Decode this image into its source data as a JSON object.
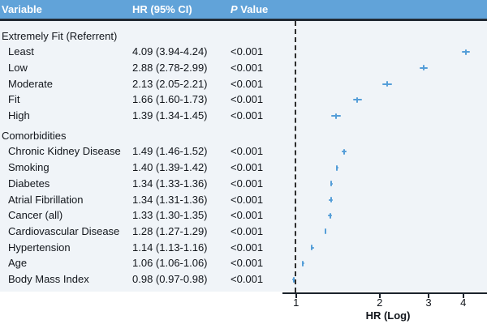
{
  "figure": {
    "header": {
      "col_variable": "Variable",
      "col_hr": "HR (95% CI)",
      "col_p_italic": "P",
      "col_p_rest": " Value"
    }
  },
  "colors": {
    "header_bg": "#61a3d9",
    "divider": "#222a33",
    "table_bg": "#f0f4f8",
    "footer_bg": "#ffffff",
    "marker": "#559ed8",
    "text": "#12161c"
  },
  "chart_data": {
    "type": "scatter",
    "subtype": "forest-plot",
    "xlabel": "HR (Log)",
    "x_scale": "log",
    "x_ticks": [
      1,
      2,
      3,
      4
    ],
    "x_range": [
      0.95,
      4.9
    ],
    "reference_line_x": 1,
    "grid": false,
    "columns": [
      "Variable",
      "HR (95% CI)",
      "P Value"
    ],
    "rows": [
      {
        "label": "Extremely Fit (Referrent)",
        "section": true
      },
      {
        "label": "Least",
        "hr": 4.09,
        "ci_low": 3.94,
        "ci_high": 4.24,
        "hr_ci_text": "4.09 (3.94-4.24)",
        "p": "<0.001"
      },
      {
        "label": "Low",
        "hr": 2.88,
        "ci_low": 2.78,
        "ci_high": 2.99,
        "hr_ci_text": "2.88 (2.78-2.99)",
        "p": "<0.001"
      },
      {
        "label": "Moderate",
        "hr": 2.13,
        "ci_low": 2.05,
        "ci_high": 2.21,
        "hr_ci_text": "2.13 (2.05-2.21)",
        "p": "<0.001"
      },
      {
        "label": "Fit",
        "hr": 1.66,
        "ci_low": 1.6,
        "ci_high": 1.73,
        "hr_ci_text": "1.66 (1.60-1.73)",
        "p": "<0.001"
      },
      {
        "label": "High",
        "hr": 1.39,
        "ci_low": 1.34,
        "ci_high": 1.45,
        "hr_ci_text": "1.39 (1.34-1.45)",
        "p": "<0.001"
      },
      {
        "label": "Comorbidities",
        "section": true
      },
      {
        "label": "Chronic Kidney Disease",
        "hr": 1.49,
        "ci_low": 1.46,
        "ci_high": 1.52,
        "hr_ci_text": "1.49 (1.46-1.52)",
        "p": "<0.001"
      },
      {
        "label": "Smoking",
        "hr": 1.4,
        "ci_low": 1.39,
        "ci_high": 1.42,
        "hr_ci_text": "1.40 (1.39-1.42)",
        "p": "<0.001"
      },
      {
        "label": "Diabetes",
        "hr": 1.34,
        "ci_low": 1.33,
        "ci_high": 1.36,
        "hr_ci_text": "1.34 (1.33-1.36)",
        "p": "<0.001"
      },
      {
        "label": "Atrial Fibrillation",
        "hr": 1.34,
        "ci_low": 1.31,
        "ci_high": 1.36,
        "hr_ci_text": "1.34 (1.31-1.36)",
        "p": "<0.001"
      },
      {
        "label": "Cancer (all)",
        "hr": 1.33,
        "ci_low": 1.3,
        "ci_high": 1.35,
        "hr_ci_text": "1.33 (1.30-1.35)",
        "p": "<0.001"
      },
      {
        "label": "Cardiovascular Disease",
        "hr": 1.28,
        "ci_low": 1.27,
        "ci_high": 1.29,
        "hr_ci_text": "1.28 (1.27-1.29)",
        "p": "<0.001"
      },
      {
        "label": "Hypertension",
        "hr": 1.14,
        "ci_low": 1.13,
        "ci_high": 1.16,
        "hr_ci_text": "1.14 (1.13-1.16)",
        "p": "<0.001"
      },
      {
        "label": "Age",
        "hr": 1.06,
        "ci_low": 1.06,
        "ci_high": 1.06,
        "hr_ci_text": "1.06 (1.06-1.06)",
        "p": "<0.001"
      },
      {
        "label": "Body Mass Index",
        "hr": 0.98,
        "ci_low": 0.97,
        "ci_high": 0.98,
        "hr_ci_text": "0.98 (0.97-0.98)",
        "p": "<0.001"
      }
    ]
  }
}
